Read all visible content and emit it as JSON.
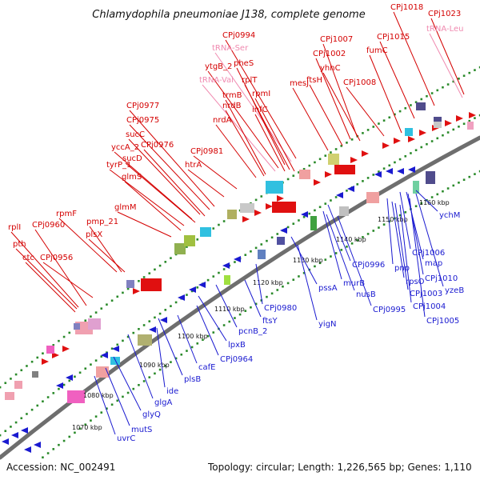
{
  "title": "Chlamydophila pneumoniae J138, complete genome",
  "footer": {
    "accession": "Accession: NC_002491",
    "summary": "Topology: circular; Length: 1,226,565 bp; Genes: 1,110"
  },
  "colors": {
    "forward_label": "#d40000",
    "reverse_label": "#1a1ad0",
    "rna_label": "#f08ab0",
    "backbone": "#6e6e6e",
    "dots": "#2a8a2a"
  },
  "ticks": [
    "1070 kbp",
    "1080 kbp",
    "1090 kbp",
    "1100 kbp",
    "1110 kbp",
    "1120 kbp",
    "1130 kbp",
    "1140 kbp",
    "1150 kbp",
    "1160 kbp"
  ],
  "outer_labels": [
    {
      "t": "CPj1018",
      "c": "forward_label"
    },
    {
      "t": "CPj1023",
      "c": "forward_label"
    },
    {
      "t": "tRNA-Leu",
      "c": "rna_label"
    },
    {
      "t": "CPj0994",
      "c": "forward_label"
    },
    {
      "t": "tRNA-Ser",
      "c": "rna_label"
    },
    {
      "t": "CPj1015",
      "c": "forward_label"
    },
    {
      "t": "CPj1007",
      "c": "forward_label"
    },
    {
      "t": "fumC",
      "c": "forward_label"
    },
    {
      "t": "CPj1002",
      "c": "forward_label"
    },
    {
      "t": "pheS",
      "c": "forward_label"
    },
    {
      "t": "ytgB_2",
      "c": "forward_label"
    },
    {
      "t": "yhhC",
      "c": "forward_label"
    },
    {
      "t": "ftsH",
      "c": "forward_label"
    },
    {
      "t": "rplT",
      "c": "forward_label"
    },
    {
      "t": "tRNA-Val",
      "c": "rna_label"
    },
    {
      "t": "CPj1008",
      "c": "forward_label"
    },
    {
      "t": "mesJ",
      "c": "forward_label"
    },
    {
      "t": "rpmI",
      "c": "forward_label"
    },
    {
      "t": "trmB",
      "c": "forward_label"
    },
    {
      "t": "nrdB",
      "c": "forward_label"
    },
    {
      "t": "infC",
      "c": "forward_label"
    },
    {
      "t": "CPj0977",
      "c": "forward_label"
    },
    {
      "t": "CPj0975",
      "c": "forward_label"
    },
    {
      "t": "nrdA",
      "c": "forward_label"
    },
    {
      "t": "sucC",
      "c": "forward_label"
    },
    {
      "t": "CPj0976",
      "c": "forward_label"
    },
    {
      "t": "yccA_2",
      "c": "forward_label"
    },
    {
      "t": "CPj0981",
      "c": "forward_label"
    },
    {
      "t": "sucD",
      "c": "forward_label"
    },
    {
      "t": "tyrP_1",
      "c": "forward_label"
    },
    {
      "t": "htrA",
      "c": "forward_label"
    },
    {
      "t": "glmS",
      "c": "forward_label"
    },
    {
      "t": "glmM",
      "c": "forward_label"
    },
    {
      "t": "rpmF",
      "c": "forward_label"
    },
    {
      "t": "pmp_21",
      "c": "forward_label"
    },
    {
      "t": "rplI",
      "c": "forward_label"
    },
    {
      "t": "CPj0960",
      "c": "forward_label"
    },
    {
      "t": "plsX",
      "c": "forward_label"
    },
    {
      "t": "pth",
      "c": "forward_label"
    },
    {
      "t": "ctc",
      "c": "forward_label"
    },
    {
      "t": "CPj0956",
      "c": "forward_label"
    }
  ],
  "inner_labels": [
    "ychM",
    "CPj1006",
    "map",
    "pnp",
    "CPj1010",
    "rpsO",
    "yzeB",
    "CPj1003",
    "CPj1004",
    "CPj1005",
    "CPj0996",
    "murB",
    "CPj0995",
    "nusB",
    "pssA",
    "CPj0980",
    "yigN",
    "ftsY",
    "pcnB_2",
    "lpxB",
    "CPj0964",
    "cafE",
    "plsB",
    "ide",
    "glgA",
    "glyQ",
    "mutS",
    "uvrC"
  ]
}
